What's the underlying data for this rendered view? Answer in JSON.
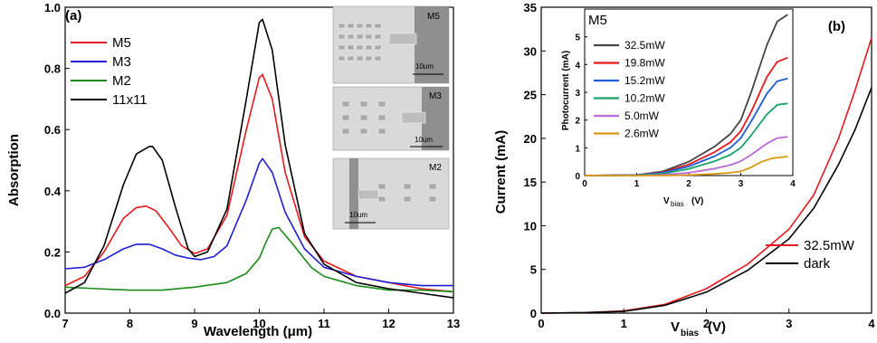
{
  "chart_data": [
    {
      "type": "line",
      "panel_label": "(a)",
      "xlabel": "Wavelength  (μm)",
      "ylabel": "Absorption",
      "xlim": [
        7,
        13
      ],
      "ylim": [
        0,
        1.0
      ],
      "xticks": [
        "7",
        "8",
        "9",
        "10",
        "11",
        "12",
        "13"
      ],
      "yticks": [
        "0.0",
        "0.2",
        "0.4",
        "0.6",
        "0.8",
        "1.0"
      ],
      "legend_position": "top-left",
      "series": [
        {
          "name": "M5",
          "color": "#e41a1c",
          "x": [
            7.0,
            7.3,
            7.6,
            7.9,
            8.1,
            8.25,
            8.4,
            8.6,
            8.8,
            9.0,
            9.2,
            9.5,
            9.8,
            10.0,
            10.05,
            10.2,
            10.4,
            10.7,
            11.0,
            11.5,
            12.0,
            12.5,
            13.0
          ],
          "y": [
            0.09,
            0.12,
            0.2,
            0.31,
            0.345,
            0.35,
            0.335,
            0.28,
            0.22,
            0.195,
            0.21,
            0.32,
            0.6,
            0.77,
            0.78,
            0.7,
            0.46,
            0.25,
            0.17,
            0.12,
            0.1,
            0.08,
            0.07
          ]
        },
        {
          "name": "M3",
          "color": "#1f1fd6",
          "x": [
            7.0,
            7.3,
            7.6,
            7.9,
            8.1,
            8.3,
            8.5,
            8.7,
            8.9,
            9.1,
            9.3,
            9.5,
            9.8,
            10.0,
            10.05,
            10.2,
            10.4,
            10.7,
            11.0,
            11.5,
            12.0,
            12.5,
            13.0
          ],
          "y": [
            0.145,
            0.15,
            0.175,
            0.21,
            0.225,
            0.225,
            0.21,
            0.19,
            0.18,
            0.175,
            0.185,
            0.22,
            0.37,
            0.49,
            0.505,
            0.46,
            0.33,
            0.21,
            0.15,
            0.12,
            0.1,
            0.09,
            0.09
          ]
        },
        {
          "name": "M2",
          "color": "#1a8a1a",
          "x": [
            7.0,
            7.5,
            8.0,
            8.5,
            9.0,
            9.5,
            9.8,
            10.0,
            10.1,
            10.2,
            10.3,
            10.5,
            10.8,
            11.0,
            11.5,
            12.0,
            12.5,
            13.0
          ],
          "y": [
            0.085,
            0.08,
            0.075,
            0.075,
            0.085,
            0.1,
            0.13,
            0.18,
            0.23,
            0.275,
            0.28,
            0.23,
            0.15,
            0.12,
            0.09,
            0.075,
            0.075,
            0.07
          ]
        },
        {
          "name": "11x11",
          "color": "#000000",
          "x": [
            7.0,
            7.3,
            7.6,
            7.9,
            8.1,
            8.3,
            8.35,
            8.5,
            8.7,
            8.9,
            9.0,
            9.2,
            9.5,
            9.8,
            10.0,
            10.05,
            10.2,
            10.4,
            10.7,
            11.0,
            11.5,
            12.0,
            12.5,
            13.0
          ],
          "y": [
            0.065,
            0.1,
            0.22,
            0.42,
            0.52,
            0.545,
            0.545,
            0.5,
            0.35,
            0.21,
            0.185,
            0.2,
            0.34,
            0.7,
            0.95,
            0.96,
            0.86,
            0.55,
            0.26,
            0.16,
            0.1,
            0.08,
            0.065,
            0.05
          ]
        }
      ],
      "inset_images": [
        {
          "label": "M5",
          "scale_bar": "10um"
        },
        {
          "label": "M3",
          "scale_bar": "10um"
        },
        {
          "label": "M2",
          "scale_bar": "10um"
        }
      ]
    },
    {
      "type": "line",
      "panel_label": "(b)",
      "xlabel_main": "V",
      "xlabel_sub": "bias",
      "xlabel_unit": "(V)",
      "ylabel": "Current (mA)",
      "xlim": [
        0,
        4
      ],
      "ylim": [
        0,
        35
      ],
      "xticks": [
        "0",
        "1",
        "2",
        "3",
        "4"
      ],
      "yticks": [
        "0",
        "5",
        "10",
        "15",
        "20",
        "25",
        "30",
        "35"
      ],
      "legend_position": "bottom-right",
      "series": [
        {
          "name": "32.5mW",
          "color": "#e41a1c",
          "x": [
            0,
            0.5,
            1.0,
            1.5,
            2.0,
            2.5,
            3.0,
            3.3,
            3.6,
            3.8,
            4.0
          ],
          "y": [
            0,
            0.05,
            0.25,
            1.0,
            2.8,
            5.6,
            9.6,
            13.5,
            20.0,
            25.5,
            31.5
          ]
        },
        {
          "name": "dark",
          "color": "#000000",
          "x": [
            0,
            0.5,
            1.0,
            1.5,
            2.0,
            2.5,
            3.0,
            3.3,
            3.6,
            3.8,
            4.0
          ],
          "y": [
            0,
            0.05,
            0.2,
            0.9,
            2.4,
            4.9,
            8.5,
            12.0,
            17.0,
            21.0,
            25.8
          ]
        }
      ],
      "inset": {
        "title": "M5",
        "xlabel_main": "V",
        "xlabel_sub": "bias",
        "xlabel_unit": "(V)",
        "ylabel": "Photocurrent (mA)",
        "xlim": [
          0,
          4
        ],
        "ylim": [
          0,
          6
        ],
        "xticks": [
          "0",
          "1",
          "2",
          "3",
          "4"
        ],
        "yticks": [
          "0",
          "1",
          "2",
          "3",
          "4",
          "5"
        ],
        "series": [
          {
            "name": "32.5mW",
            "color": "#444444",
            "x": [
              0,
              1,
              1.5,
              2,
              2.5,
              2.8,
              3.0,
              3.2,
              3.5,
              3.7,
              3.9
            ],
            "y": [
              0,
              0.02,
              0.15,
              0.5,
              1.05,
              1.5,
              2.0,
              3.0,
              4.7,
              5.55,
              5.8
            ]
          },
          {
            "name": "19.8mW",
            "color": "#e41a1c",
            "x": [
              0,
              1,
              1.5,
              2,
              2.5,
              2.8,
              3.0,
              3.2,
              3.5,
              3.7,
              3.9
            ],
            "y": [
              0,
              0.02,
              0.12,
              0.4,
              0.85,
              1.2,
              1.6,
              2.3,
              3.55,
              4.1,
              4.25
            ]
          },
          {
            "name": "15.2mW",
            "color": "#1f5fd6",
            "x": [
              0,
              1,
              1.5,
              2,
              2.5,
              2.8,
              3.0,
              3.2,
              3.5,
              3.7,
              3.9
            ],
            "y": [
              0,
              0.02,
              0.1,
              0.33,
              0.7,
              1.0,
              1.35,
              1.95,
              2.95,
              3.4,
              3.5
            ]
          },
          {
            "name": "10.2mW",
            "color": "#1aa06a",
            "x": [
              0,
              1,
              1.5,
              2,
              2.5,
              2.8,
              3.0,
              3.2,
              3.5,
              3.7,
              3.9
            ],
            "y": [
              0,
              0.01,
              0.07,
              0.24,
              0.52,
              0.75,
              1.0,
              1.45,
              2.2,
              2.55,
              2.6
            ]
          },
          {
            "name": "5.0mW",
            "color": "#b86ad8",
            "x": [
              0,
              1,
              1.5,
              2,
              2.5,
              2.8,
              3.0,
              3.2,
              3.5,
              3.7,
              3.9
            ],
            "y": [
              0,
              0.0,
              0.03,
              0.1,
              0.25,
              0.38,
              0.52,
              0.75,
              1.15,
              1.35,
              1.4
            ]
          },
          {
            "name": "2.6mW",
            "color": "#d9960f",
            "x": [
              0,
              1,
              1.5,
              2,
              2.5,
              2.8,
              3.0,
              3.2,
              3.4,
              3.6,
              3.8,
              3.9
            ],
            "y": [
              0,
              0.0,
              0.0,
              0.02,
              0.06,
              0.1,
              0.15,
              0.3,
              0.5,
              0.62,
              0.67,
              0.68
            ]
          }
        ]
      }
    }
  ]
}
